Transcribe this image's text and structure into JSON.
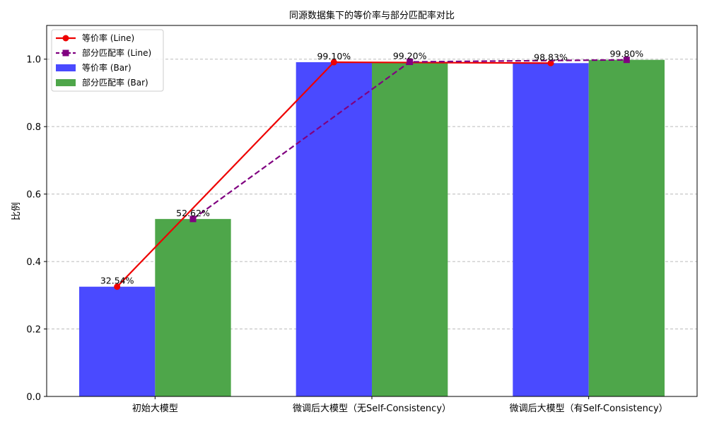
{
  "chart_data": {
    "type": "bar",
    "title": "同源数据集下的等价率与部分匹配率对比",
    "xlabel": "",
    "ylabel": "比例",
    "categories": [
      "初始大模型",
      "微调后大模型（无Self-Consistency）",
      "微调后大模型（有Self-Consistency）"
    ],
    "ylim": [
      0,
      1.1
    ],
    "yticks": [
      "0.0",
      "0.2",
      "0.4",
      "0.6",
      "0.8",
      "1.0"
    ],
    "grid": true,
    "legend_position": "top-left",
    "series": [
      {
        "name": "等价率 (Bar)",
        "kind": "bar",
        "color": "#4a4aff",
        "values": [
          0.3254,
          0.991,
          0.9883
        ],
        "labels": [
          "32.54%",
          "99.10%",
          "98.83%"
        ]
      },
      {
        "name": "部分匹配率 (Bar)",
        "kind": "bar",
        "color": "#4ea64a",
        "values": [
          0.5262,
          0.992,
          0.998
        ],
        "labels": [
          "52.62%",
          "99.20%",
          "99.80%"
        ]
      },
      {
        "name": "等价率 (Line)",
        "kind": "line",
        "color": "#ee0000",
        "marker": "circle",
        "dash": "solid",
        "values": [
          0.3254,
          0.991,
          0.9883
        ]
      },
      {
        "name": "部分匹配率 (Line)",
        "kind": "line",
        "color": "#800080",
        "marker": "square",
        "dash": "dashed",
        "values": [
          0.5262,
          0.992,
          0.998
        ]
      }
    ],
    "legend_order": [
      "等价率 (Line)",
      "部分匹配率 (Line)",
      "等价率 (Bar)",
      "部分匹配率 (Bar)"
    ]
  }
}
